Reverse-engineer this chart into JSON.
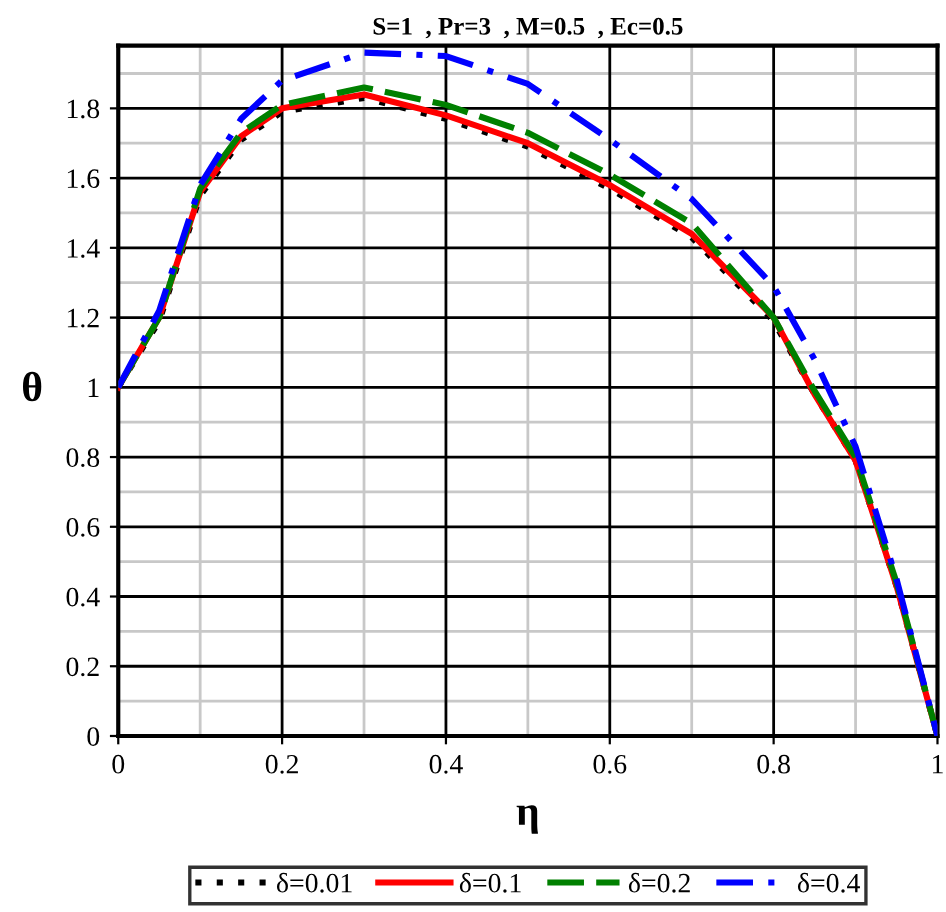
{
  "chart_data": {
    "type": "line",
    "title": "S=1  , Pr=3  , M=0.5  , Ec=0.5",
    "xlabel": "η",
    "ylabel": "θ",
    "x": [
      0,
      0.05,
      0.1,
      0.15,
      0.2,
      0.3,
      0.4,
      0.5,
      0.6,
      0.7,
      0.8,
      0.85,
      0.9,
      0.95,
      1
    ],
    "series": [
      {
        "name": "δ=0.01",
        "color": "#000000",
        "line_style": "dotted",
        "values": [
          1,
          1.19,
          1.55,
          1.71,
          1.79,
          1.83,
          1.77,
          1.69,
          1.57,
          1.43,
          1.19,
          0.98,
          0.79,
          0.43,
          0
        ]
      },
      {
        "name": "δ=0.1",
        "color": "#ff0000",
        "line_style": "solid",
        "values": [
          1,
          1.2,
          1.56,
          1.72,
          1.8,
          1.84,
          1.78,
          1.7,
          1.58,
          1.44,
          1.2,
          0.98,
          0.79,
          0.43,
          0
        ]
      },
      {
        "name": "δ=0.2",
        "color": "#008000",
        "line_style": "dashed",
        "values": [
          1,
          1.2,
          1.57,
          1.73,
          1.81,
          1.86,
          1.81,
          1.73,
          1.61,
          1.47,
          1.2,
          0.99,
          0.8,
          0.44,
          0
        ]
      },
      {
        "name": "δ=0.4",
        "color": "#0000ff",
        "line_style": "dashdot",
        "values": [
          1,
          1.22,
          1.58,
          1.77,
          1.88,
          1.96,
          1.95,
          1.87,
          1.71,
          1.54,
          1.29,
          1.08,
          0.83,
          0.45,
          0
        ]
      }
    ],
    "xlim": [
      0,
      1
    ],
    "ylim": [
      0,
      1.98
    ],
    "xticks": [
      0,
      0.2,
      0.4,
      0.6,
      0.8,
      1
    ],
    "yticks": [
      0,
      0.2,
      0.4,
      0.6,
      0.8,
      1,
      1.2,
      1.4,
      1.6,
      1.8
    ],
    "grid": true,
    "legend": "bottom"
  }
}
